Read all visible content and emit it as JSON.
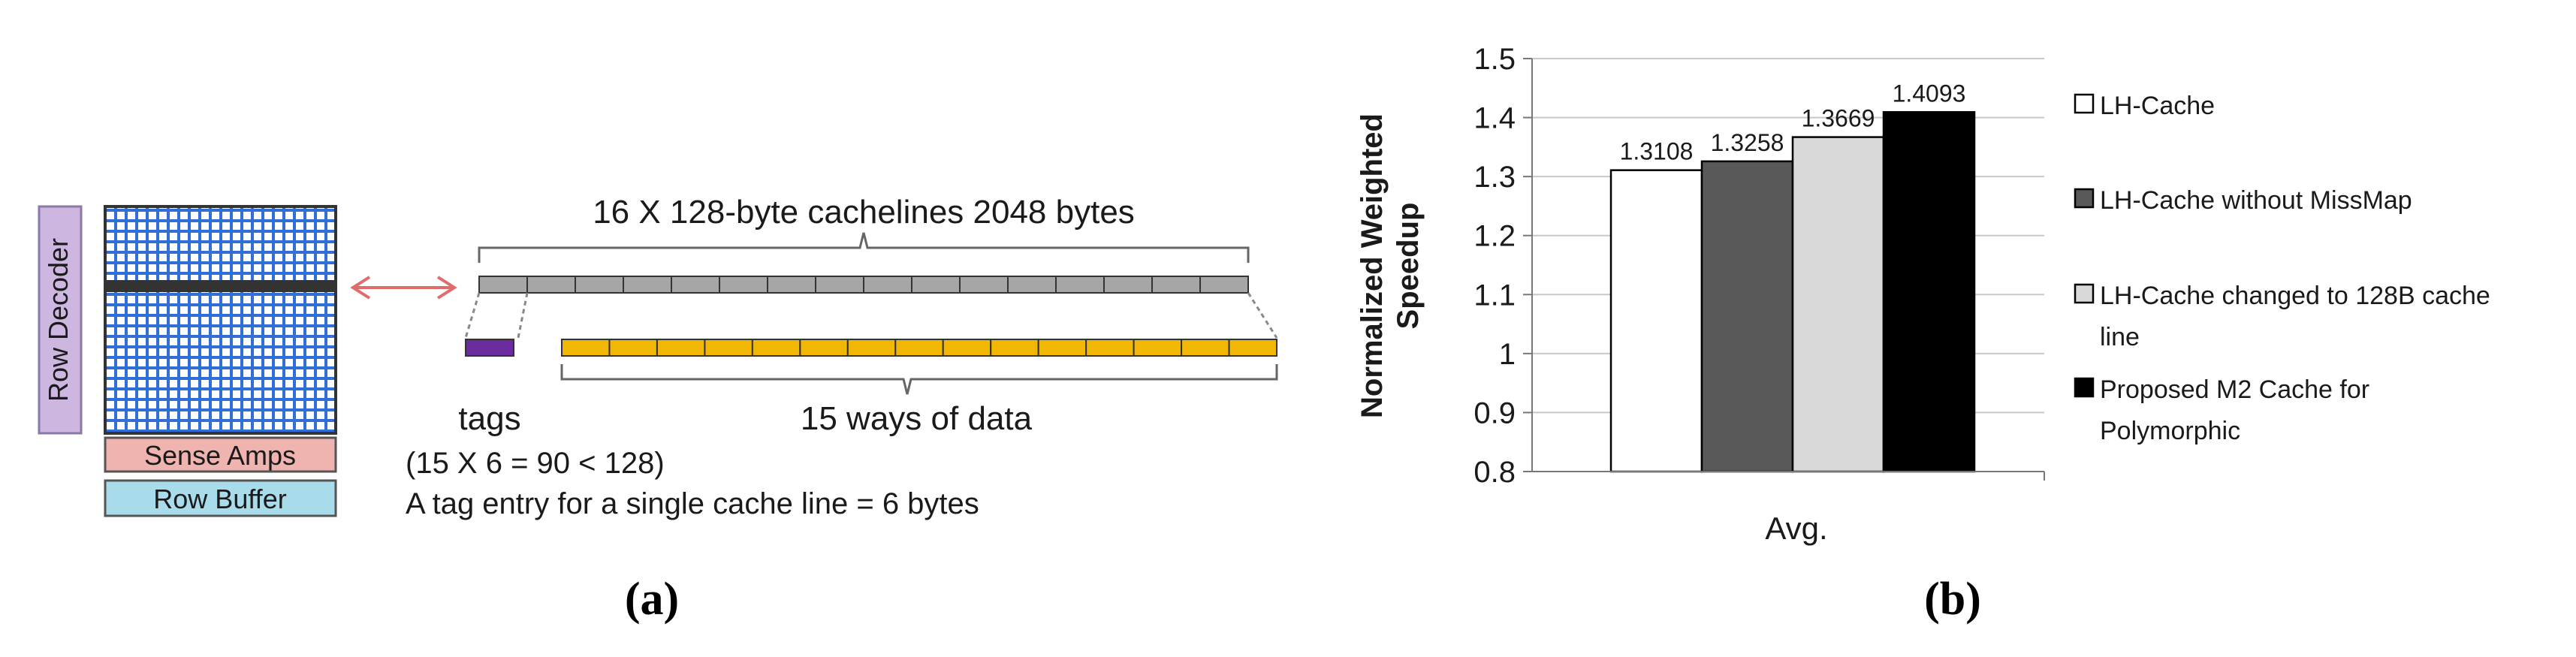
{
  "panel_a": {
    "label": "(a)",
    "row_decoder": "Row Decoder",
    "sense_amps": "Sense Amps",
    "row_buffer": "Row Buffer",
    "cachelines_label": "16 X 128-byte cachelines 2048 bytes",
    "tags_label": "tags",
    "data_label": "15 ways of data",
    "tag_calc": "(15 X 6 = 90 < 128)",
    "tag_entry_note": "A tag entry for a single cache line = 6 bytes",
    "colors": {
      "array_blue": "#2f6fd6",
      "row_highlight": "#333333",
      "decoder_fill": "#cdb6e0",
      "sense_fill": "#efb4b0",
      "buffer_fill": "#a9dcea",
      "cacheline_gray": "#a6a6a6",
      "tag_purple": "#6b2a9e",
      "data_gold": "#f2b705",
      "arrow_red": "#e06b6b"
    }
  },
  "panel_b": {
    "label": "(b)",
    "chart_data": {
      "type": "bar",
      "categories": [
        "Avg."
      ],
      "series": [
        {
          "name": "LH-Cache",
          "values": [
            1.3108
          ],
          "color": "#ffffff"
        },
        {
          "name": "LH-Cache without MissMap",
          "values": [
            1.3258
          ],
          "color": "#595959"
        },
        {
          "name": "LH-Cache changed to 128B cache line",
          "values": [
            1.3669
          ],
          "color": "#d9d9d9"
        },
        {
          "name": "Proposed M2 Cache for Polymorphic",
          "values": [
            1.4093
          ],
          "color": "#000000"
        }
      ],
      "value_labels": [
        "1.3108",
        "1.3258",
        "1.3669",
        "1.4093"
      ],
      "ylabel_lines": [
        "Normalized Weighted",
        "Speedup"
      ],
      "xlabel": "Avg.",
      "ylim": [
        0.8,
        1.5
      ],
      "yticks": [
        "0.8",
        "0.9",
        "1",
        "1.1",
        "1.2",
        "1.3",
        "1.4",
        "1.5"
      ],
      "grid": true,
      "legend_position": "right",
      "legend_lines": [
        [
          "LH-Cache"
        ],
        [
          "LH-Cache without MissMap"
        ],
        [
          "LH-Cache changed to 128B cache",
          "line"
        ],
        [
          "Proposed M2 Cache for",
          "Polymorphic"
        ]
      ]
    }
  }
}
